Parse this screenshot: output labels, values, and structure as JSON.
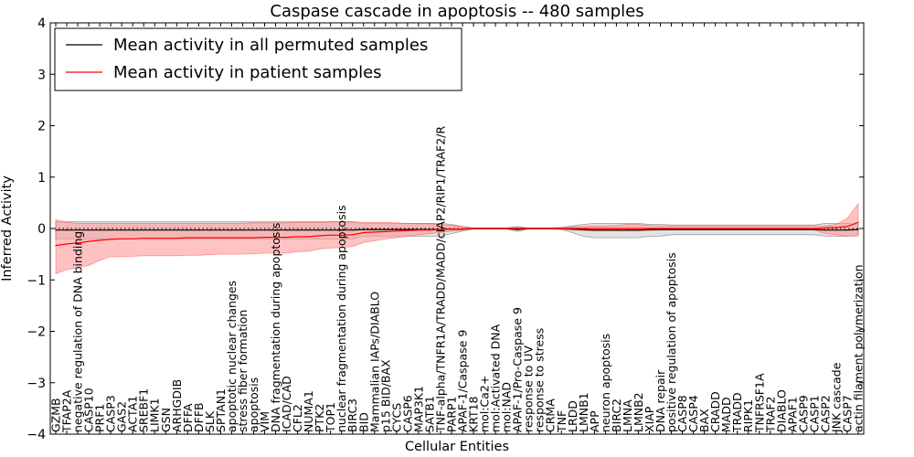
{
  "chart_data": {
    "type": "line",
    "title": "Caspase cascade in apoptosis -- 480 samples",
    "xlabel": "Cellular Entities",
    "ylabel": "Inferred Activity",
    "ylim": [
      -4,
      4
    ],
    "yticks": [
      -4,
      -3,
      -2,
      -1,
      0,
      1,
      2,
      3,
      4
    ],
    "ytick_labels": [
      "−4",
      "−3",
      "−2",
      "−1",
      "0",
      "1",
      "2",
      "3",
      "4"
    ],
    "legend_position": "top-left",
    "categories": [
      "GZMB",
      "TFAP2A",
      "negative regulation of DNA binding",
      "CASP10",
      "PRF1",
      "CASP3",
      "GAS2",
      "ACTA1",
      "SREBF1",
      "LIMK1",
      "GSN",
      "ARHGDIB",
      "DFFA",
      "DFFB",
      "SLK",
      "SPTAN1",
      "apoptotic nuclear changes",
      "stress fiber formation",
      "apoptosis",
      "VIM",
      "DNA fragmentation during apoptosis",
      "ICAD/CAD",
      "CFL2",
      "NUMA1",
      "PTK2",
      "TOP1",
      "nuclear fragmentation during apoptosis",
      "BIRC3",
      "BID",
      "Mammalian IAPs/DIABLO",
      "p15 BID/BAX",
      "CYCS",
      "CASP6",
      "MAP3K1",
      "SATB1",
      "TNF-alpha/TNFR1A/TRADD/MADD/cIAP2/RIP1/TRAF2/R",
      "PARP1",
      "APAF-1/Caspase 9",
      "KRT18",
      "mol:Ca2+",
      "mol:Activated DNA",
      "mol:NAD",
      "APAF-1/Pro-Caspase 9",
      "response to UV",
      "response to stress",
      "CRMA",
      "TNF",
      "LRDD",
      "LMNB1",
      "APP",
      "neuron apoptosis",
      "BIRC2",
      "LMNA",
      "LMNB2",
      "XIAP",
      "DNA repair",
      "positive regulation of apoptosis",
      "CASP8",
      "CASP4",
      "BAX",
      "CRADD",
      "MADD",
      "TRADD",
      "RIPK1",
      "TNFRSF1A",
      "TRAF2",
      "DIABLO",
      "APAF1",
      "CASP9",
      "CASP1",
      "CASP2",
      "JNK cascade",
      "CASP7",
      "actin filament polymerization"
    ],
    "series": [
      {
        "name": "Mean activity in all permuted samples",
        "color": "#000000",
        "band_color": "#b0b0b0",
        "values": [
          -0.03,
          -0.03,
          -0.03,
          -0.03,
          -0.03,
          -0.03,
          -0.03,
          -0.03,
          -0.03,
          -0.03,
          -0.03,
          -0.03,
          -0.03,
          -0.03,
          -0.03,
          -0.03,
          -0.03,
          -0.03,
          -0.03,
          -0.03,
          -0.03,
          -0.03,
          -0.03,
          -0.03,
          -0.03,
          -0.03,
          -0.03,
          -0.03,
          -0.02,
          -0.02,
          -0.02,
          -0.02,
          -0.02,
          -0.02,
          -0.02,
          -0.02,
          -0.01,
          -0.01,
          0,
          0,
          0,
          0,
          -0.02,
          0,
          0,
          0,
          0,
          -0.01,
          -0.02,
          -0.03,
          -0.03,
          -0.03,
          -0.03,
          -0.03,
          -0.02,
          -0.02,
          -0.02,
          -0.02,
          -0.02,
          -0.02,
          -0.02,
          -0.02,
          -0.02,
          -0.02,
          -0.02,
          -0.02,
          -0.02,
          -0.02,
          -0.02,
          -0.02,
          -0.03,
          -0.03,
          -0.03,
          -0.02
        ],
        "lower": [
          -0.2,
          -0.2,
          -0.2,
          -0.2,
          -0.2,
          -0.2,
          -0.2,
          -0.2,
          -0.2,
          -0.2,
          -0.2,
          -0.2,
          -0.2,
          -0.2,
          -0.2,
          -0.2,
          -0.2,
          -0.2,
          -0.2,
          -0.2,
          -0.2,
          -0.2,
          -0.2,
          -0.2,
          -0.2,
          -0.2,
          -0.2,
          -0.2,
          -0.15,
          -0.15,
          -0.15,
          -0.15,
          -0.15,
          -0.15,
          -0.15,
          -0.15,
          -0.1,
          -0.05,
          -0.01,
          -0.01,
          -0.01,
          -0.01,
          -0.06,
          -0.01,
          -0.01,
          -0.01,
          -0.02,
          -0.08,
          -0.15,
          -0.18,
          -0.18,
          -0.18,
          -0.18,
          -0.18,
          -0.15,
          -0.15,
          -0.12,
          -0.12,
          -0.12,
          -0.12,
          -0.12,
          -0.12,
          -0.12,
          -0.12,
          -0.12,
          -0.12,
          -0.12,
          -0.12,
          -0.12,
          -0.12,
          -0.15,
          -0.15,
          -0.15,
          -0.12
        ],
        "upper": [
          0.13,
          0.13,
          0.13,
          0.13,
          0.13,
          0.13,
          0.13,
          0.13,
          0.13,
          0.13,
          0.13,
          0.13,
          0.13,
          0.13,
          0.13,
          0.13,
          0.13,
          0.13,
          0.13,
          0.13,
          0.13,
          0.13,
          0.13,
          0.13,
          0.13,
          0.13,
          0.13,
          0.13,
          0.1,
          0.1,
          0.1,
          0.1,
          0.1,
          0.1,
          0.1,
          0.1,
          0.08,
          0.04,
          0.01,
          0.01,
          0.01,
          0.01,
          0.04,
          0.01,
          0.01,
          0.01,
          0.02,
          0.05,
          0.08,
          0.1,
          0.1,
          0.1,
          0.1,
          0.1,
          0.08,
          0.08,
          0.07,
          0.07,
          0.07,
          0.07,
          0.07,
          0.07,
          0.07,
          0.07,
          0.07,
          0.07,
          0.07,
          0.07,
          0.07,
          0.07,
          0.1,
          0.1,
          0.1,
          0.08
        ]
      },
      {
        "name": "Mean activity in patient samples",
        "color": "#ff0000",
        "band_color": "#ff9999",
        "values": [
          -0.33,
          -0.3,
          -0.28,
          -0.25,
          -0.23,
          -0.21,
          -0.2,
          -0.2,
          -0.19,
          -0.19,
          -0.19,
          -0.19,
          -0.18,
          -0.18,
          -0.18,
          -0.18,
          -0.18,
          -0.18,
          -0.18,
          -0.17,
          -0.17,
          -0.17,
          -0.16,
          -0.16,
          -0.14,
          -0.13,
          -0.13,
          -0.12,
          -0.08,
          -0.07,
          -0.06,
          -0.05,
          -0.04,
          -0.03,
          -0.03,
          -0.02,
          -0.01,
          -0.01,
          0,
          0,
          0,
          0,
          0,
          0,
          0,
          0,
          0,
          0,
          0,
          0,
          0,
          0,
          0,
          0,
          0,
          0,
          0,
          0,
          0,
          0,
          0,
          0,
          0,
          0,
          0,
          0,
          0,
          0,
          0,
          0,
          0.01,
          0.02,
          0.04,
          0.12
        ],
        "lower": [
          -0.88,
          -0.8,
          -0.76,
          -0.72,
          -0.62,
          -0.55,
          -0.55,
          -0.54,
          -0.53,
          -0.53,
          -0.53,
          -0.53,
          -0.52,
          -0.52,
          -0.51,
          -0.5,
          -0.5,
          -0.5,
          -0.49,
          -0.48,
          -0.48,
          -0.48,
          -0.45,
          -0.44,
          -0.4,
          -0.38,
          -0.37,
          -0.35,
          -0.27,
          -0.24,
          -0.2,
          -0.18,
          -0.15,
          -0.12,
          -0.1,
          -0.08,
          -0.05,
          -0.03,
          -0.01,
          -0.01,
          -0.01,
          -0.01,
          -0.02,
          -0.01,
          -0.01,
          -0.01,
          -0.02,
          -0.03,
          -0.04,
          -0.05,
          -0.05,
          -0.05,
          -0.05,
          -0.05,
          -0.04,
          -0.03,
          -0.03,
          -0.03,
          -0.03,
          -0.03,
          -0.03,
          -0.03,
          -0.03,
          -0.03,
          -0.03,
          -0.03,
          -0.03,
          -0.03,
          -0.03,
          -0.03,
          -0.1,
          -0.12,
          -0.15,
          -0.15
        ],
        "upper": [
          0.17,
          0.12,
          0.1,
          0.1,
          0.1,
          0.1,
          0.1,
          0.1,
          0.1,
          0.1,
          0.1,
          0.1,
          0.1,
          0.1,
          0.1,
          0.1,
          0.1,
          0.1,
          0.11,
          0.11,
          0.11,
          0.11,
          0.12,
          0.12,
          0.12,
          0.13,
          0.13,
          0.13,
          0.12,
          0.12,
          0.12,
          0.11,
          0.1,
          0.09,
          0.09,
          0.08,
          0.06,
          0.04,
          0.01,
          0.01,
          0.01,
          0.01,
          0.02,
          0.01,
          0.01,
          0.01,
          0.02,
          0.03,
          0.04,
          0.05,
          0.05,
          0.06,
          0.08,
          0.08,
          0.06,
          0.05,
          0.05,
          0.05,
          0.05,
          0.05,
          0.05,
          0.05,
          0.05,
          0.05,
          0.05,
          0.05,
          0.05,
          0.05,
          0.05,
          0.05,
          0.05,
          0.08,
          0.2,
          0.48
        ]
      }
    ]
  }
}
